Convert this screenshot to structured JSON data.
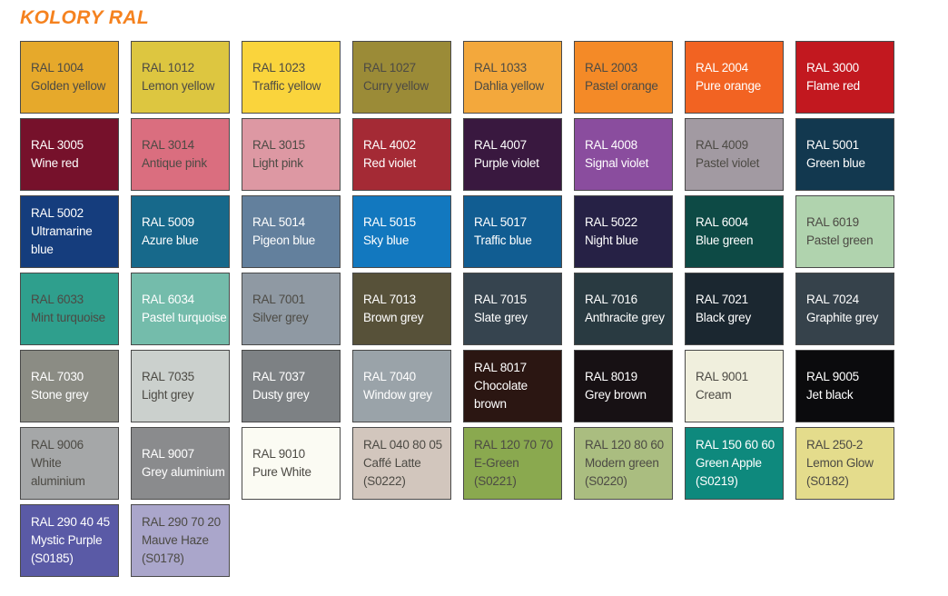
{
  "page": {
    "title": "KOLORY RAL"
  },
  "colors": {
    "title": "#F5821F",
    "border": "#4A4A4A",
    "text_dark": "#4C4A44",
    "text_light": "#FFFFFF",
    "background": "#FFFFFF"
  },
  "swatches": [
    {
      "code": "RAL 1004",
      "name": "Golden yellow",
      "bg": "#E6A92B",
      "text": "dark"
    },
    {
      "code": "RAL 1012",
      "name": "Lemon yellow",
      "bg": "#DDC640",
      "text": "dark"
    },
    {
      "code": "RAL 1023",
      "name": "Traffic yellow",
      "bg": "#FAD43C",
      "text": "dark"
    },
    {
      "code": "RAL 1027",
      "name": "Curry yellow",
      "bg": "#9B8B37",
      "text": "dark"
    },
    {
      "code": "RAL 1033",
      "name": "Dahlia yellow",
      "bg": "#F3A83C",
      "text": "dark"
    },
    {
      "code": "RAL 2003",
      "name": "Pastel orange",
      "bg": "#F48A27",
      "text": "dark"
    },
    {
      "code": "RAL 2004",
      "name": "Pure orange",
      "bg": "#F26322",
      "text": "light"
    },
    {
      "code": "RAL 3000",
      "name": "Flame red",
      "bg": "#C2181F",
      "text": "light"
    },
    {
      "code": "RAL 3005",
      "name": "Wine red",
      "bg": "#76112B",
      "text": "light"
    },
    {
      "code": "RAL 3014",
      "name": "Antique pink",
      "bg": "#DA6E7F",
      "text": "dark"
    },
    {
      "code": "RAL 3015",
      "name": "Light pink",
      "bg": "#DD98A3",
      "text": "dark"
    },
    {
      "code": "RAL 4002",
      "name": "Red violet",
      "bg": "#A42A35",
      "text": "light"
    },
    {
      "code": "RAL 4007",
      "name": "Purple violet",
      "bg": "#39183F",
      "text": "light"
    },
    {
      "code": "RAL 4008",
      "name": "Signal violet",
      "bg": "#8A4D9E",
      "text": "light"
    },
    {
      "code": "RAL 4009",
      "name": "Pastel violet",
      "bg": "#A29AA2",
      "text": "dark"
    },
    {
      "code": "RAL 5001",
      "name": "Green blue",
      "bg": "#12384F",
      "text": "light"
    },
    {
      "code": "RAL 5002",
      "name": "Ultramarine blue",
      "bg": "#153D7D",
      "text": "light"
    },
    {
      "code": "RAL 5009",
      "name": "Azure blue",
      "bg": "#17698B",
      "text": "light"
    },
    {
      "code": "RAL 5014",
      "name": "Pigeon blue",
      "bg": "#63809D",
      "text": "light"
    },
    {
      "code": "RAL 5015",
      "name": "Sky blue",
      "bg": "#1278BF",
      "text": "light"
    },
    {
      "code": "RAL 5017",
      "name": "Traffic blue",
      "bg": "#115D92",
      "text": "light"
    },
    {
      "code": "RAL 5022",
      "name": "Night blue",
      "bg": "#262145",
      "text": "light"
    },
    {
      "code": "RAL 6004",
      "name": "Blue green",
      "bg": "#0D4A45",
      "text": "light"
    },
    {
      "code": "RAL 6019",
      "name": "Pastel green",
      "bg": "#B0D3AE",
      "text": "dark"
    },
    {
      "code": "RAL 6033",
      "name": "Mint turquoise",
      "bg": "#2F9F8D",
      "text": "dark"
    },
    {
      "code": "RAL 6034",
      "name": "Pastel turquoise",
      "bg": "#74BCAB",
      "text": "light"
    },
    {
      "code": "RAL 7001",
      "name": "Silver grey",
      "bg": "#8F99A3",
      "text": "dark"
    },
    {
      "code": "RAL 7013",
      "name": "Brown grey",
      "bg": "#575139",
      "text": "light"
    },
    {
      "code": "RAL 7015",
      "name": "Slate grey",
      "bg": "#36444F",
      "text": "light"
    },
    {
      "code": "RAL 7016",
      "name": "Anthracite grey",
      "bg": "#293A41",
      "text": "light"
    },
    {
      "code": "RAL 7021",
      "name": "Black grey",
      "bg": "#1B2730",
      "text": "light"
    },
    {
      "code": "RAL 7024",
      "name": "Graphite grey",
      "bg": "#36424B",
      "text": "light"
    },
    {
      "code": "RAL 7030",
      "name": "Stone grey",
      "bg": "#8B8C84",
      "text": "light"
    },
    {
      "code": "RAL 7035",
      "name": "Light grey",
      "bg": "#CBD0CD",
      "text": "dark"
    },
    {
      "code": "RAL 7037",
      "name": "Dusty grey",
      "bg": "#7D8184",
      "text": "light"
    },
    {
      "code": "RAL 7040",
      "name": "Window grey",
      "bg": "#9AA3A9",
      "text": "light"
    },
    {
      "code": "RAL 8017",
      "name": "Chocolate brown",
      "bg": "#2B1612",
      "text": "light"
    },
    {
      "code": "RAL 8019",
      "name": "Grey brown",
      "bg": "#171114",
      "text": "light"
    },
    {
      "code": "RAL 9001",
      "name": "Cream",
      "bg": "#F0EFDD",
      "text": "dark"
    },
    {
      "code": "RAL 9005",
      "name": "Jet black",
      "bg": "#0B0B0D",
      "text": "light"
    },
    {
      "code": "RAL 9006",
      "name": "White aluminium",
      "bg": "#A5A7A8",
      "text": "dark"
    },
    {
      "code": "RAL 9007",
      "name": "Grey aluminium",
      "bg": "#8A8B8D",
      "text": "light"
    },
    {
      "code": "RAL 9010",
      "name": "Pure White",
      "bg": "#FBFBF3",
      "text": "dark"
    },
    {
      "code": "RAL 040 80 05",
      "name": "Caffé Latte",
      "suffix": "(S0222)",
      "bg": "#D2C6BD",
      "text": "dark"
    },
    {
      "code": "RAL 120 70 70",
      "name": "E-Green",
      "suffix": "(S0221)",
      "bg": "#8AA94F",
      "text": "dark"
    },
    {
      "code": "RAL 120 80 60",
      "name": "Modern green",
      "suffix": "(S0220)",
      "bg": "#AABD80",
      "text": "dark"
    },
    {
      "code": "RAL 150 60 60",
      "name": "Green Apple",
      "suffix": "(S0219)",
      "bg": "#0E897D",
      "text": "light"
    },
    {
      "code": "RAL 250-2",
      "name": "Lemon Glow",
      "suffix": "(S0182)",
      "bg": "#E4DC8C",
      "text": "dark"
    },
    {
      "code": "RAL 290 40 45",
      "name": "Mystic Purple",
      "suffix": "(S0185)",
      "bg": "#5A5AA6",
      "text": "light"
    },
    {
      "code": "RAL 290 70 20",
      "name": "Mauve Haze",
      "suffix": "(S0178)",
      "bg": "#AAA6CB",
      "text": "dark"
    }
  ]
}
